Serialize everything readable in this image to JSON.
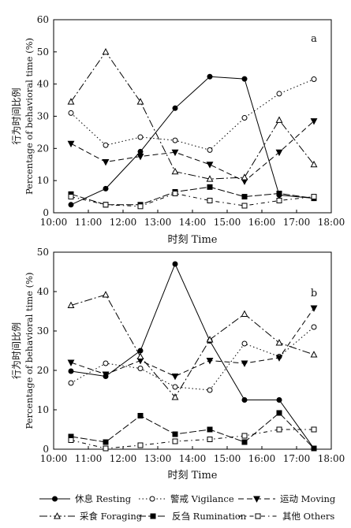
{
  "chart_data": [
    {
      "type": "line",
      "panel_label": "a",
      "ylabel_cn": "行为时间比例",
      "ylabel_en": "Percentage of behavioral time (%)",
      "xlabel": "时刻 Time",
      "ylim": [
        0,
        60
      ],
      "yticks": [
        0,
        10,
        20,
        30,
        40,
        50,
        60
      ],
      "xlim": [
        10.0,
        18.0
      ],
      "xticks": [
        "10:00",
        "11:00",
        "12:00",
        "13:00",
        "14:00",
        "15:00",
        "16:00",
        "17:00",
        "18:00"
      ],
      "x": [
        10.5,
        11.5,
        12.5,
        13.5,
        14.5,
        15.5,
        16.5,
        17.5
      ],
      "series": [
        {
          "name": "休息 Resting",
          "key": "resting",
          "values": [
            2.5,
            7.5,
            19.0,
            32.5,
            42.3,
            41.6,
            5.5,
            4.5
          ]
        },
        {
          "name": "警戒 Vigilance",
          "key": "vigilance",
          "values": [
            31.0,
            21.0,
            23.5,
            22.5,
            19.5,
            29.5,
            37.0,
            41.5
          ]
        },
        {
          "name": "运动 Moving",
          "key": "moving",
          "values": [
            21.5,
            15.8,
            17.5,
            18.8,
            15.0,
            9.8,
            18.8,
            28.5
          ]
        },
        {
          "name": "采食 Foraging",
          "key": "foraging",
          "values": [
            34.5,
            50.0,
            34.5,
            12.8,
            10.5,
            11.0,
            28.8,
            15.0
          ]
        },
        {
          "name": "反刍 Rumination",
          "key": "rumination",
          "values": [
            5.8,
            2.5,
            2.5,
            6.5,
            8.0,
            5.0,
            6.0,
            4.5
          ]
        },
        {
          "name": "其他 Others",
          "key": "others",
          "values": [
            5.0,
            2.5,
            2.0,
            6.0,
            3.8,
            2.2,
            3.8,
            5.0
          ]
        }
      ]
    },
    {
      "type": "line",
      "panel_label": "b",
      "ylabel_cn": "行为时间比例",
      "ylabel_en": "Percentage of behavioral time (%)",
      "xlabel": "时刻 Time",
      "ylim": [
        0,
        50
      ],
      "yticks": [
        0,
        10,
        20,
        30,
        40,
        50
      ],
      "xlim": [
        10.0,
        18.0
      ],
      "xticks": [
        "10:00",
        "11:00",
        "12:00",
        "13:00",
        "14:00",
        "15:00",
        "16:00",
        "17:00",
        "18:00"
      ],
      "x": [
        10.5,
        11.5,
        12.5,
        13.5,
        14.5,
        15.5,
        16.5,
        17.5
      ],
      "series": [
        {
          "name": "休息 Resting",
          "key": "resting",
          "values": [
            19.8,
            18.5,
            25.0,
            47.0,
            27.5,
            12.5,
            12.5,
            0.2
          ]
        },
        {
          "name": "警戒 Vigilance",
          "key": "vigilance",
          "values": [
            16.8,
            21.8,
            20.5,
            15.8,
            15.0,
            26.8,
            23.5,
            31.0
          ]
        },
        {
          "name": "运动 Moving",
          "key": "moving",
          "values": [
            22.0,
            19.0,
            22.5,
            18.5,
            22.5,
            21.8,
            23.2,
            35.8
          ]
        },
        {
          "name": "采食 Foraging",
          "key": "foraging",
          "values": [
            36.5,
            39.2,
            23.5,
            13.2,
            27.8,
            34.3,
            27.0,
            24.0
          ]
        },
        {
          "name": "反刍 Rumination",
          "key": "rumination",
          "values": [
            3.2,
            1.8,
            8.5,
            3.8,
            5.0,
            1.8,
            9.2,
            0.2
          ]
        },
        {
          "name": "其他 Others",
          "key": "others",
          "values": [
            2.3,
            0.2,
            1.0,
            2.0,
            2.5,
            3.4,
            5.0,
            5.0
          ]
        }
      ]
    }
  ],
  "legend": {
    "items": [
      {
        "key": "resting",
        "label": "休息 Resting"
      },
      {
        "key": "vigilance",
        "label": "警戒 Vigilance"
      },
      {
        "key": "moving",
        "label": "运动 Moving"
      },
      {
        "key": "foraging",
        "label": "采食 Foraging"
      },
      {
        "key": "rumination",
        "label": "反刍 Rumination"
      },
      {
        "key": "others",
        "label": "其他 Others"
      }
    ]
  }
}
